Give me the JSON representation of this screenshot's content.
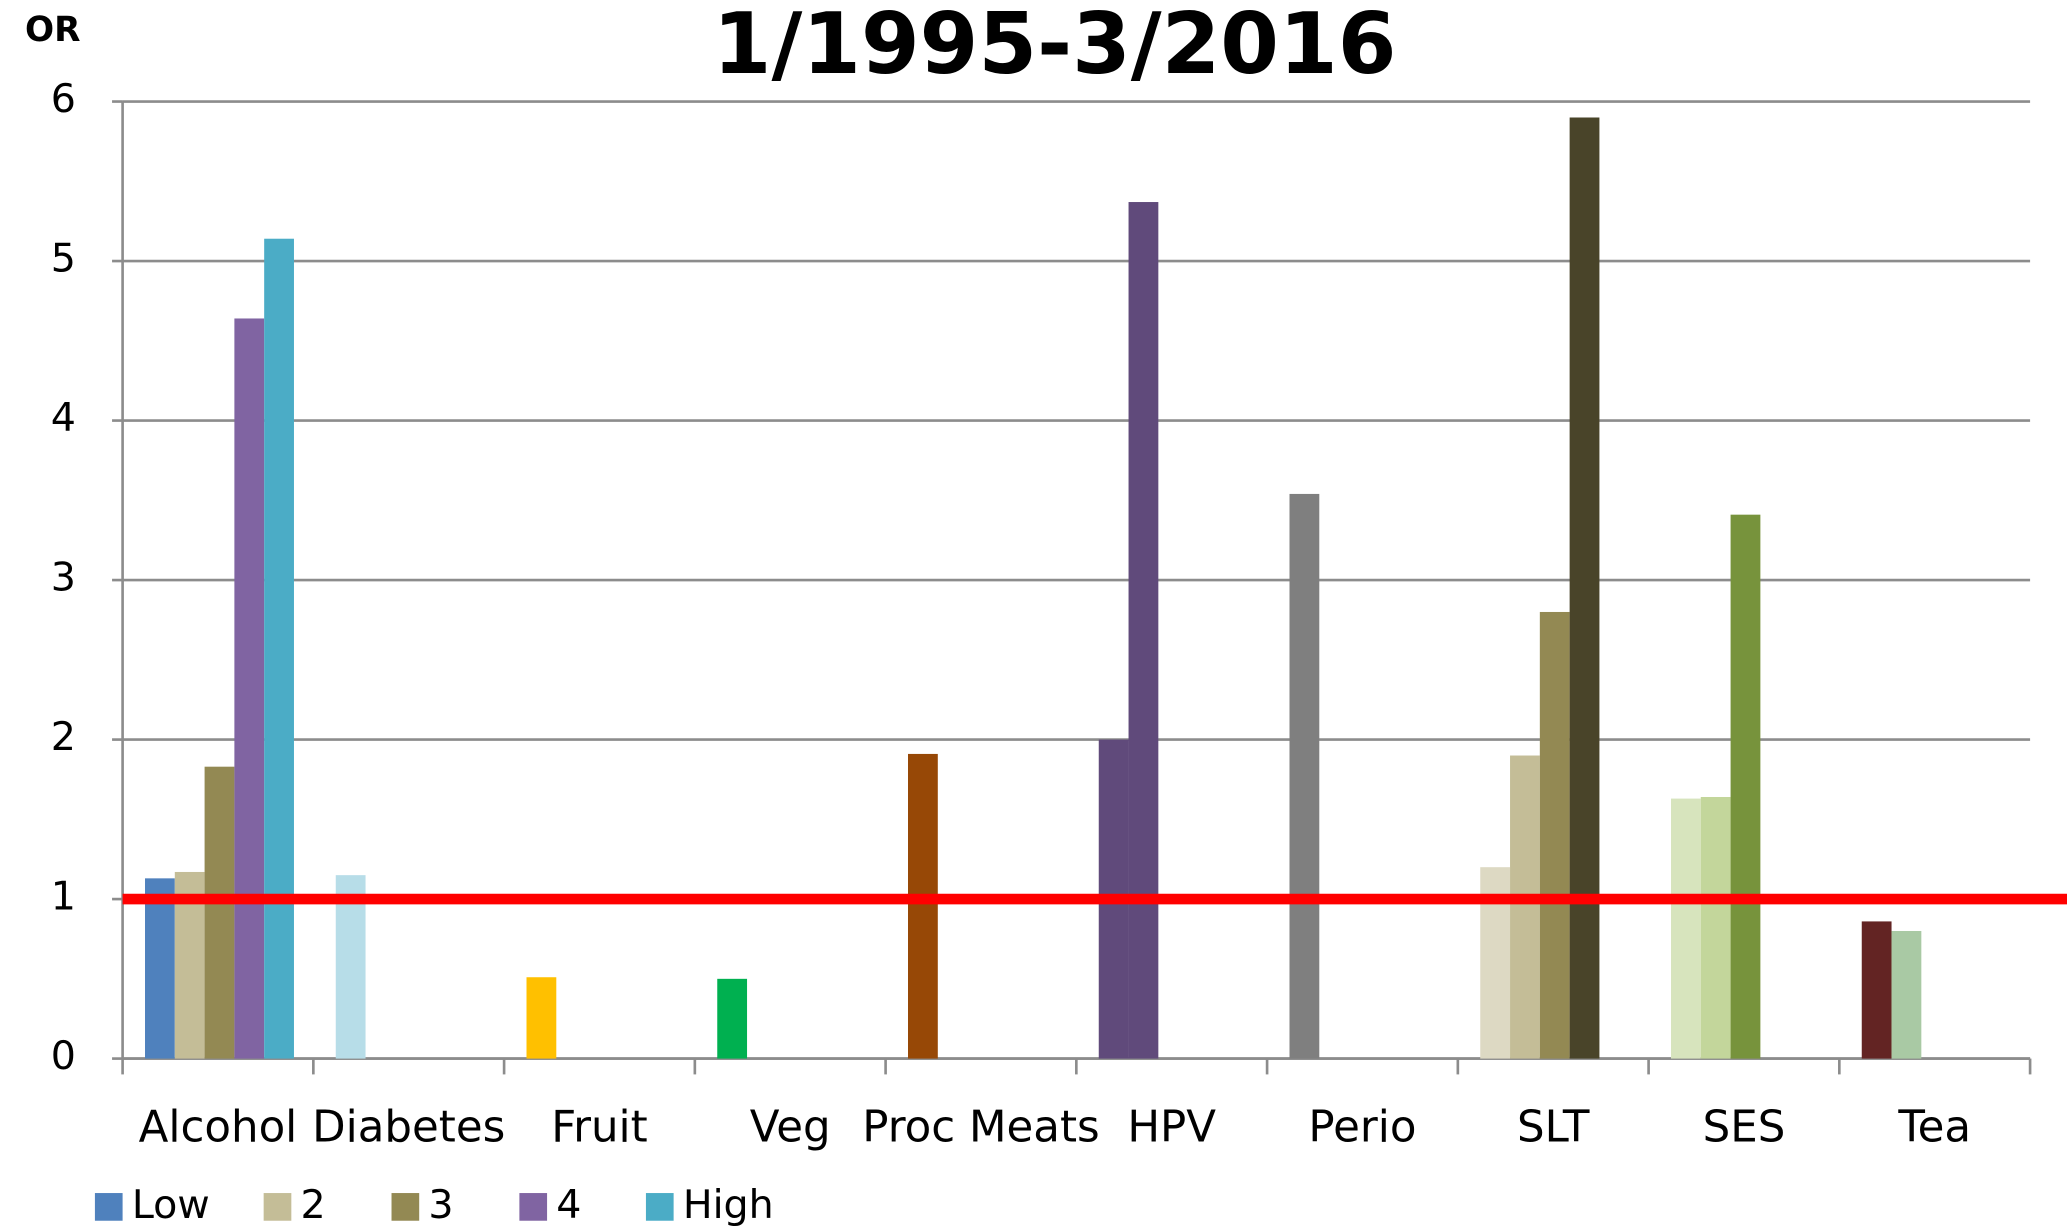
{
  "chart_data": {
    "type": "bar",
    "title": "1/1995-3/2016",
    "y_label": "OR",
    "categories": [
      "Alcohol",
      "Diabetes",
      "Fruit",
      "Veg",
      "Proc Meats",
      "HPV",
      "Perio",
      "SLT",
      "SES",
      "Tea"
    ],
    "series": [
      {
        "name": "Low",
        "color": "#4f81bd",
        "values": [
          1.13,
          1.15,
          0.51,
          0.5,
          1.91,
          2.0,
          3.54,
          1.2,
          1.63,
          0.86
        ],
        "colors": [
          "#4f81bd",
          "#b7dde8",
          "#ffc000",
          "#00b050",
          "#974806",
          "#604a7b",
          "#7f7f7f",
          "#ddd9c3",
          "#d7e4bd",
          "#632423"
        ]
      },
      {
        "name": "2",
        "color": "#c4bd97",
        "values": [
          1.17,
          null,
          null,
          null,
          null,
          5.37,
          null,
          1.9,
          1.64,
          0.8
        ],
        "colors": [
          "#c4bd97",
          null,
          null,
          null,
          null,
          "#604a7b",
          null,
          "#c4bd97",
          "#c3d69b",
          "#a9c9a4"
        ]
      },
      {
        "name": "3",
        "color": "#938953",
        "values": [
          1.83,
          null,
          null,
          null,
          null,
          null,
          null,
          2.8,
          3.41,
          null
        ],
        "colors": [
          "#938953",
          null,
          null,
          null,
          null,
          null,
          null,
          "#938953",
          "#77933c",
          null
        ]
      },
      {
        "name": "4",
        "color": "#8064a2",
        "values": [
          4.64,
          null,
          null,
          null,
          null,
          null,
          null,
          5.9,
          null,
          null
        ],
        "colors": [
          "#8064a2",
          null,
          null,
          null,
          null,
          null,
          null,
          "#494429",
          null,
          null
        ]
      },
      {
        "name": "High",
        "color": "#4bacc6",
        "values": [
          5.14,
          null,
          null,
          null,
          null,
          null,
          null,
          null,
          null,
          null
        ],
        "colors": [
          "#4bacc6",
          null,
          null,
          null,
          null,
          null,
          null,
          null,
          null,
          null
        ]
      }
    ],
    "reference_line": {
      "value": 1,
      "color": "#ff0000"
    },
    "ylim": [
      0,
      6
    ],
    "yticks": [
      0,
      1,
      2,
      3,
      4,
      5,
      6
    ],
    "grid": true,
    "legend": "bottom-left"
  }
}
